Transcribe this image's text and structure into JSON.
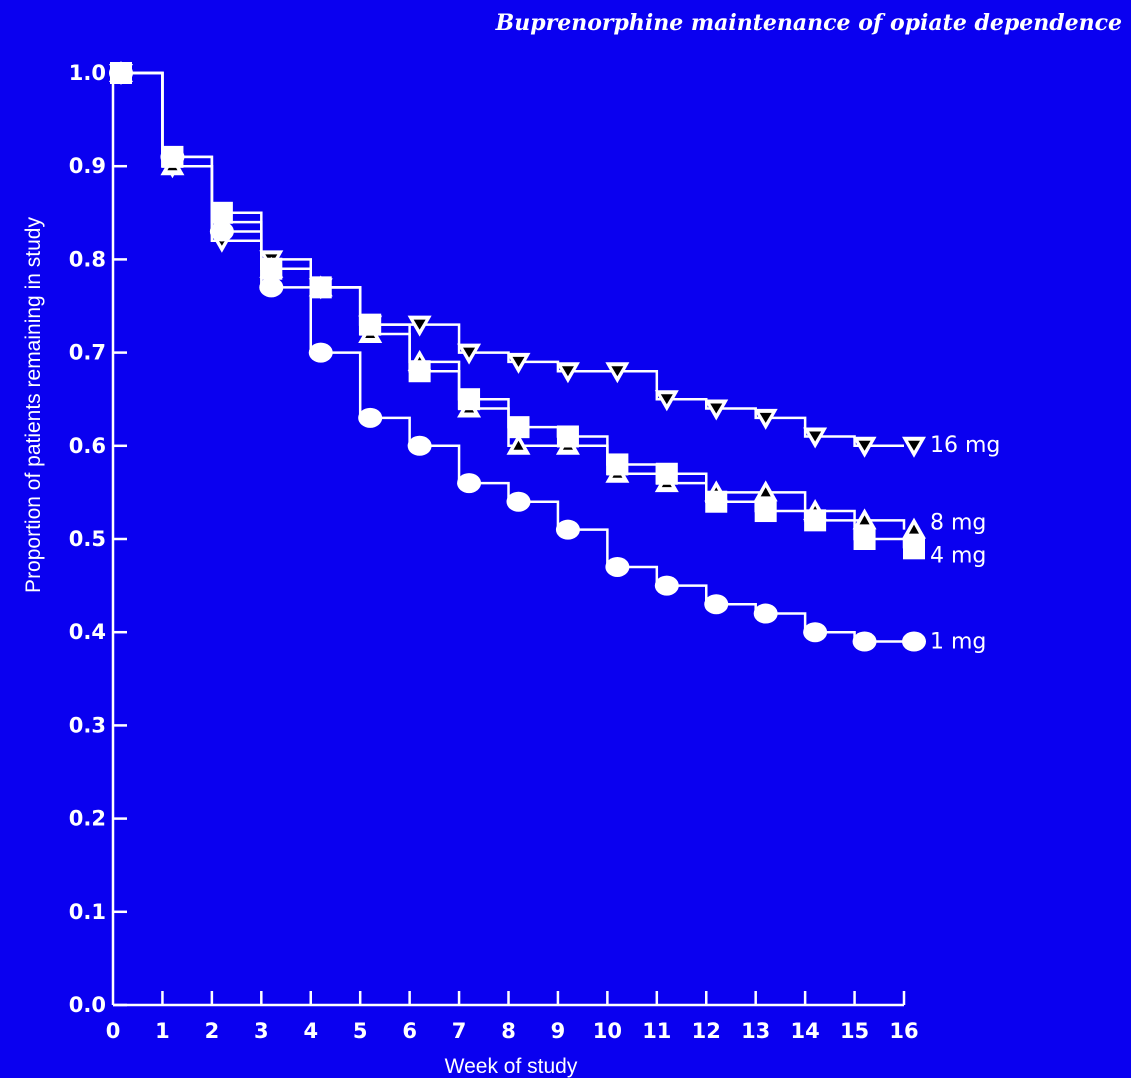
{
  "header": {
    "title": "Buprenorphine maintenance of opiate dependence"
  },
  "colors": {
    "background": "#0a00f0",
    "foreground": "#ffffff",
    "marker_fill_dark": "#000000"
  },
  "chart_data": {
    "type": "line",
    "step": true,
    "title": "",
    "xlabel": "Week of study",
    "ylabel": "Proportion of patients remaining in study",
    "xlim": [
      0,
      16
    ],
    "ylim": [
      0,
      1.0
    ],
    "x_ticks": [
      "0",
      "1",
      "2",
      "3",
      "4",
      "5",
      "6",
      "7",
      "8",
      "9",
      "10",
      "11",
      "12",
      "13",
      "14",
      "15",
      "16"
    ],
    "y_ticks": [
      "0.0",
      "0.1",
      "0.2",
      "0.3",
      "0.4",
      "0.5",
      "0.6",
      "0.7",
      "0.8",
      "0.9",
      "1.0"
    ],
    "grid": false,
    "legend": "series labels at right end of each line",
    "x": [
      0,
      1,
      2,
      3,
      4,
      5,
      6,
      7,
      8,
      9,
      10,
      11,
      12,
      13,
      14,
      15,
      16
    ],
    "series": [
      {
        "name": "16 mg",
        "marker": "triangle-down",
        "values": [
          1.0,
          0.9,
          0.82,
          0.8,
          0.77,
          0.73,
          0.73,
          0.7,
          0.69,
          0.68,
          0.68,
          0.65,
          0.64,
          0.63,
          0.61,
          0.6,
          0.6
        ]
      },
      {
        "name": "8 mg",
        "marker": "triangle-up",
        "values": [
          1.0,
          0.9,
          0.84,
          0.79,
          0.77,
          0.72,
          0.69,
          0.64,
          0.6,
          0.6,
          0.57,
          0.56,
          0.55,
          0.55,
          0.53,
          0.52,
          0.51
        ]
      },
      {
        "name": "4 mg",
        "marker": "square",
        "values": [
          1.0,
          0.91,
          0.85,
          0.79,
          0.77,
          0.73,
          0.68,
          0.65,
          0.62,
          0.61,
          0.58,
          0.57,
          0.54,
          0.53,
          0.52,
          0.5,
          0.49
        ]
      },
      {
        "name": "1 mg",
        "marker": "circle",
        "values": [
          1.0,
          0.91,
          0.83,
          0.77,
          0.7,
          0.63,
          0.6,
          0.56,
          0.54,
          0.51,
          0.47,
          0.45,
          0.43,
          0.42,
          0.4,
          0.39,
          0.39
        ]
      }
    ]
  }
}
